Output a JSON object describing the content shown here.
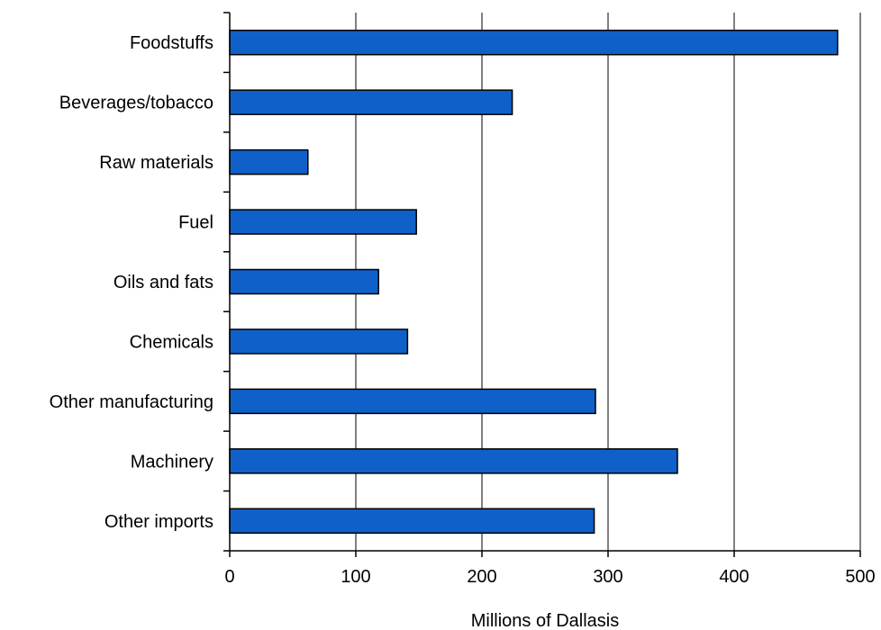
{
  "chart_data": {
    "type": "bar",
    "orientation": "horizontal",
    "title": "",
    "xlabel": "Millions of Dallasis",
    "ylabel": "",
    "categories": [
      "Foodstuffs",
      "Beverages/tobacco",
      "Raw materials",
      "Fuel",
      "Oils and fats",
      "Chemicals",
      "Other manufacturing",
      "Machinery",
      "Other imports"
    ],
    "values": [
      482,
      224,
      62,
      148,
      118,
      141,
      290,
      355,
      289
    ],
    "xlim": [
      0,
      500
    ],
    "xticks": [
      0,
      100,
      200,
      300,
      400,
      500
    ],
    "xtick_labels": [
      "0",
      "100",
      "200",
      "300",
      "400",
      "500"
    ],
    "grid": "vertical",
    "legend": "none",
    "colors": {
      "bar_fill": "#0f61c9",
      "bar_stroke": "#000000",
      "grid": "#000000",
      "axis": "#000000",
      "text": "#000000"
    }
  }
}
